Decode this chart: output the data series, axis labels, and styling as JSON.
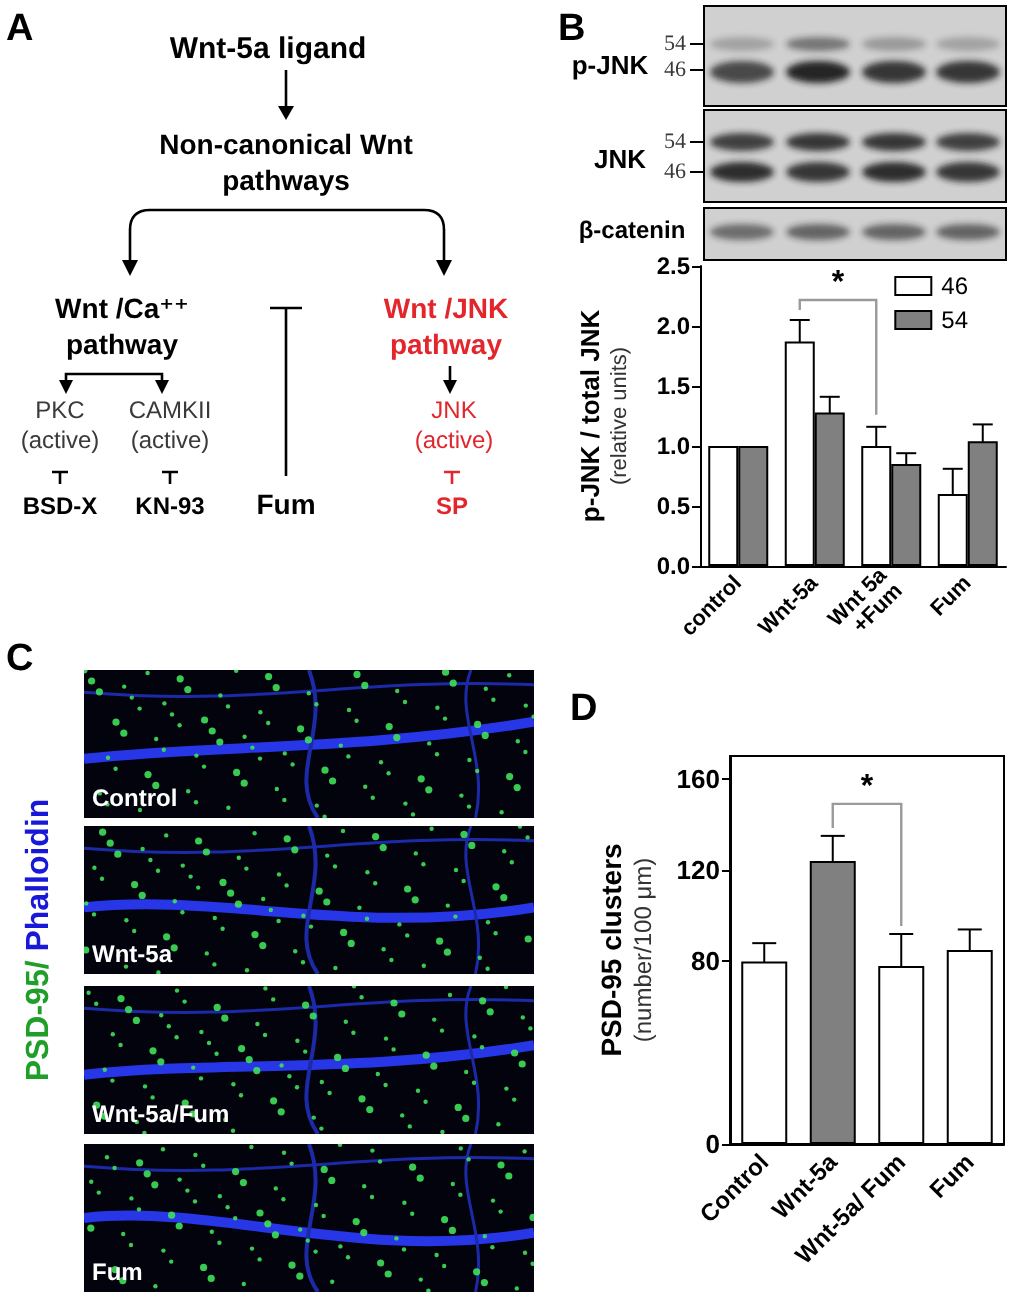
{
  "chart_data": [
    {
      "type": "other",
      "title": "A",
      "annotations": [
        "Wnt-5a ligand",
        "Non-canonical Wnt\npathways",
        "Wnt /Ca⁺⁺\npathway",
        "Wnt /JNK\npathway",
        "PKC\n(active)",
        "CAMKII\n(active)",
        "JNK\n(active)",
        "BSD-X",
        "KN-93",
        "Fum",
        "SP"
      ]
    },
    {
      "type": "bar",
      "title": "B",
      "ylabel": "p-JNK / total JNK\n(relative units)",
      "categories": [
        "control",
        "Wnt-5a",
        "Wnt 5a\n+Fum",
        "Fum"
      ],
      "series": [
        {
          "name": "46",
          "color": "#ffffff",
          "values": [
            1.0,
            1.87,
            1.0,
            0.6
          ],
          "errors": [
            null,
            0.18,
            0.16,
            0.21
          ]
        },
        {
          "name": "54",
          "color": "#808080",
          "values": [
            1.0,
            1.28,
            0.85,
            1.04
          ],
          "errors": [
            null,
            0.13,
            0.09,
            0.14
          ]
        }
      ],
      "ylim": [
        0,
        2.5
      ],
      "yticks": [
        {
          "value": 0,
          "label": "0.0"
        },
        {
          "value": 0.5,
          "label": "0.5"
        },
        {
          "value": 1,
          "label": "1.0"
        },
        {
          "value": 1.5,
          "label": "1.5"
        },
        {
          "value": 2,
          "label": "2.0"
        },
        {
          "value": 2.5,
          "label": "2.5"
        }
      ],
      "legend": "top right",
      "annotations": [
        "*",
        "p-JNK",
        "54",
        "46",
        "JNK",
        "54",
        "46",
        "β-catenin"
      ]
    },
    {
      "type": "other",
      "title": "C",
      "ylabel": "PSD-95/ Phalloidin",
      "annotations": [
        "Control",
        "Wnt-5a",
        "Wnt-5a/Fum",
        "Fum"
      ]
    },
    {
      "type": "bar",
      "title": "D",
      "ylabel": "PSD-95 clusters\n(number/100 μm)",
      "categories": [
        "Control",
        "Wnt-5a",
        "Wnt-5a/ Fum",
        "Fum"
      ],
      "values": [
        80,
        124,
        78,
        85
      ],
      "errors": [
        8,
        11,
        14,
        9
      ],
      "colors": [
        "#ffffff",
        "#808080",
        "#ffffff",
        "#ffffff"
      ],
      "ylim": [
        0,
        170
      ],
      "yticks": [
        0,
        80,
        120,
        160
      ],
      "annotations": [
        "*"
      ]
    }
  ]
}
